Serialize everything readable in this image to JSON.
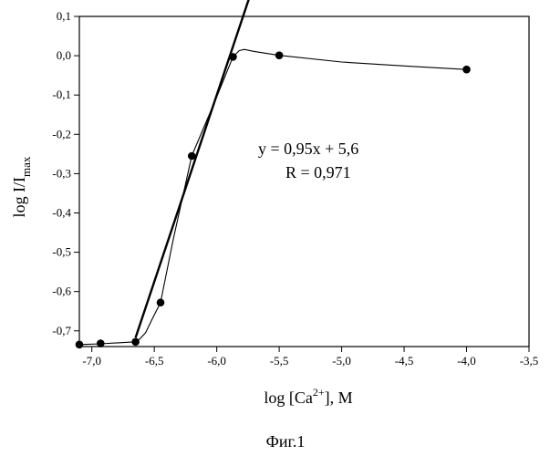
{
  "chart_data": {
    "type": "scatter",
    "caption": "Фиг.1",
    "xlabel": {
      "main": "log [Ca",
      "sup": "2+",
      "tail": "], M"
    },
    "ylabel": {
      "main": "log I/I",
      "sub": "max"
    },
    "xlim": [
      -7.1,
      -3.5
    ],
    "ylim": [
      -0.74,
      0.1
    ],
    "xticks": [
      -7.0,
      -6.5,
      -6.0,
      -5.5,
      -5.0,
      -4.5,
      -4.0,
      -3.5
    ],
    "xtick_labels": [
      "-7,0",
      "-6,5",
      "-6,0",
      "-5,5",
      "-5,0",
      "-4,5",
      "-4,0",
      "-3,5"
    ],
    "yticks": [
      0.1,
      0.0,
      -0.1,
      -0.2,
      -0.3,
      -0.4,
      -0.5,
      -0.6,
      -0.7
    ],
    "ytick_labels": [
      "0,1",
      "0,0",
      "-0,1",
      "-0,2",
      "-0,3",
      "-0,4",
      "-0,5",
      "-0,6",
      "-0,7"
    ],
    "grid": false,
    "legend": false,
    "series": [
      {
        "kind": "points",
        "x": [
          -7.1,
          -6.93,
          -6.65,
          -6.45,
          -6.2,
          -5.87,
          -5.5,
          -4.0
        ],
        "y": [
          -0.735,
          -0.732,
          -0.728,
          -0.628,
          -0.255,
          -0.003,
          0.001,
          -0.035
        ]
      },
      {
        "kind": "smooth-curve",
        "x": [
          -7.1,
          -6.93,
          -6.65,
          -6.62,
          -6.57,
          -6.52,
          -6.45,
          -6.35,
          -6.2,
          -6.0,
          -5.87,
          -5.82,
          -5.78,
          -5.7,
          -5.5,
          -5.0,
          -4.5,
          -4.0
        ],
        "y": [
          -0.735,
          -0.733,
          -0.728,
          -0.722,
          -0.705,
          -0.672,
          -0.628,
          -0.47,
          -0.255,
          -0.105,
          -0.003,
          0.013,
          0.016,
          0.011,
          0.001,
          -0.016,
          -0.026,
          -0.035
        ]
      },
      {
        "kind": "fit-line",
        "slope": 0.95,
        "intercept": 5.6,
        "x_range": [
          -6.65,
          -5.7
        ]
      }
    ],
    "annotations": [
      "y = 0,95x + 5,6",
      "R = 0,971"
    ]
  }
}
